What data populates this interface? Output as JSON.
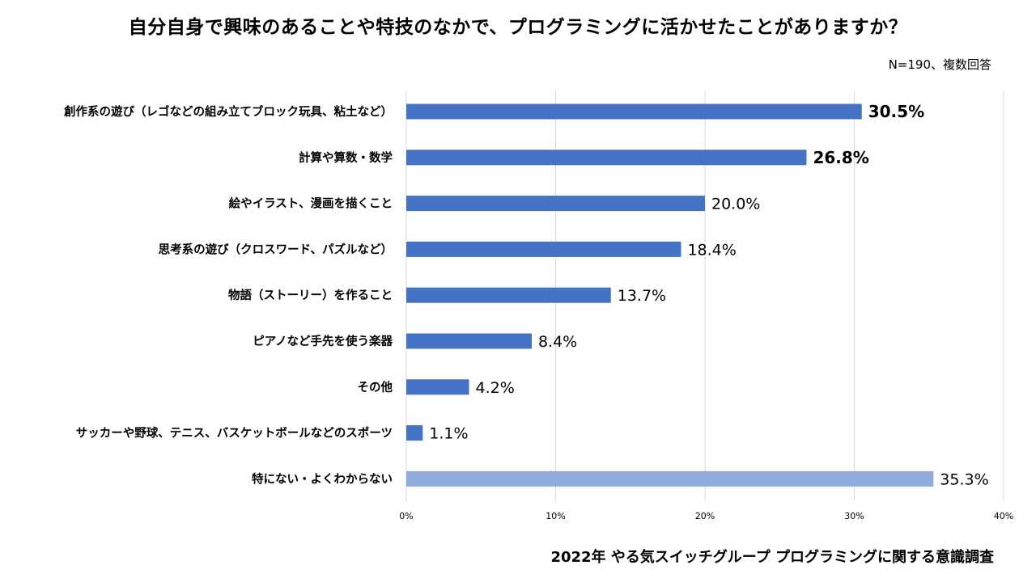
{
  "title": "自分自身で興味のあることや特技のなかで、プログラミングに活かせたことがありますか？",
  "note": "N=190、複数回答",
  "footer": "2022年 やる気スイッチグループ プログラミングに関する意識調査",
  "colors": {
    "bar": "#4472c4",
    "bar_light": "#8faadc",
    "grid": "#d9d9d9",
    "text": "#000000"
  },
  "chart_data": {
    "type": "bar",
    "orientation": "horizontal",
    "title": "自分自身で興味のあることや特技のなかで、プログラミングに活かせたことがありますか？",
    "xlabel": "",
    "ylabel": "",
    "xlim": [
      0,
      40
    ],
    "ticks": [
      "0%",
      "10%",
      "20%",
      "30%",
      "40%"
    ],
    "grid": true,
    "categories": [
      "創作系の遊び（レゴなどの組み立てブロック玩具、粘土など）",
      "計算や算数・数学",
      "絵やイラスト、漫画を描くこと",
      "思考系の遊び（クロスワード、パズルなど）",
      "物語（ストーリー）を作ること",
      "ピアノなど手先を使う楽器",
      "その他",
      "サッカーや野球、テニス、バスケットボールなどのスポーツ",
      "特にない・よくわからない"
    ],
    "values": [
      30.5,
      26.8,
      20.0,
      18.4,
      13.7,
      8.4,
      4.2,
      1.1,
      35.3
    ],
    "labels": [
      "30.5%",
      "26.8%",
      "20.0%",
      "18.4%",
      "13.7%",
      "8.4%",
      "4.2%",
      "1.1%",
      "35.3%"
    ],
    "highlighted": [
      true,
      true,
      false,
      false,
      false,
      false,
      false,
      false,
      false
    ],
    "muted": [
      false,
      false,
      false,
      false,
      false,
      false,
      false,
      false,
      true
    ]
  }
}
